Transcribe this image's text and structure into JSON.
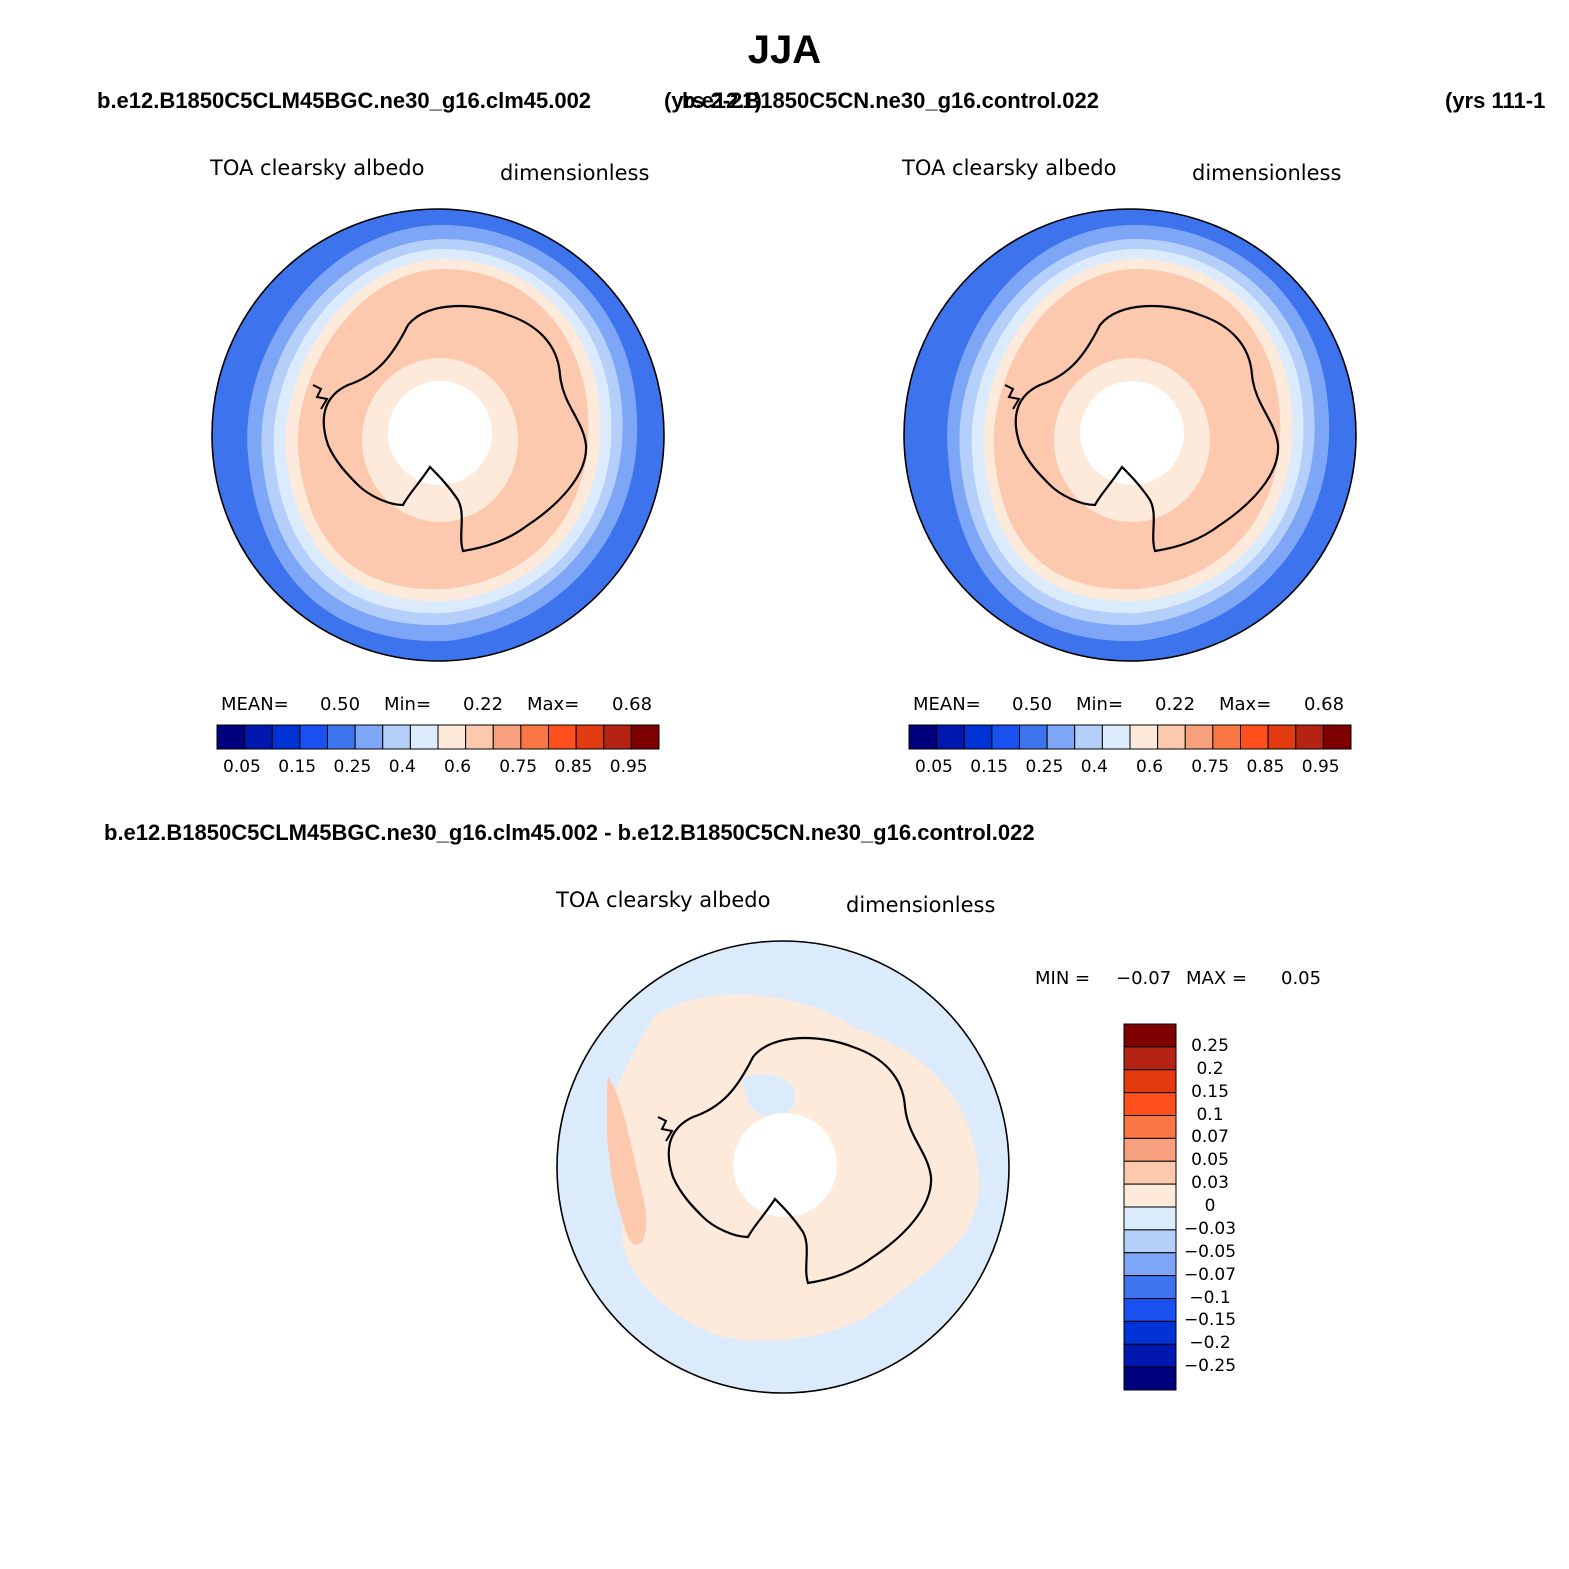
{
  "figure": {
    "season": "JJA"
  },
  "panels": [
    {
      "case": "b.e12.B1850C5CLM45BGC.ne30_g16.clm45.002",
      "years": "(yrs 2-21)",
      "variable": "TOA clearsky albedo",
      "units": "dimensionless",
      "mean_label": "MEAN=",
      "mean": "0.50",
      "min_label": "Min=",
      "min": "0.22",
      "max_label": "Max=",
      "max": "0.68"
    },
    {
      "case": "b.e12.B1850C5CN.ne30_g16.control.022",
      "years": "(yrs 111-1",
      "variable": "TOA clearsky albedo",
      "units": "dimensionless",
      "mean_label": "MEAN=",
      "mean": "0.50",
      "min_label": "Min=",
      "min": "0.22",
      "max_label": "Max=",
      "max": "0.68"
    }
  ],
  "diff": {
    "title": "b.e12.B1850C5CLM45BGC.ne30_g16.clm45.002 - b.e12.B1850C5CN.ne30_g16.control.022",
    "variable": "TOA clearsky albedo",
    "units": "dimensionless",
    "min_label": "MIN =",
    "min": "−0.07",
    "max_label": "MAX =",
    "max": "0.05"
  },
  "colorbars": {
    "abs_colors": [
      "#00007f",
      "#0017b0",
      "#0033d6",
      "#1a4ff0",
      "#3d74ee",
      "#7ea6f6",
      "#b5cffb",
      "#dcebfc",
      "#fdeadb",
      "#fcc8ae",
      "#f6a07e",
      "#f97744",
      "#ff4f1c",
      "#e33b10",
      "#b52412",
      "#7f0000"
    ],
    "abs_labels": [
      "0.05",
      "0.15",
      "0.25",
      "0.4",
      "0.6",
      "0.75",
      "0.85",
      "0.95"
    ],
    "diff_colors": [
      "#7f0000",
      "#b52412",
      "#e33b10",
      "#ff4f1c",
      "#f97744",
      "#f6a07e",
      "#fcc8ae",
      "#fdeadb",
      "#dcebfc",
      "#b5cffb",
      "#7ea6f6",
      "#3d74ee",
      "#1a4ff0",
      "#0033d6",
      "#0017b0",
      "#00007f"
    ],
    "diff_labels": [
      "0.25",
      "0.2",
      "0.15",
      "0.1",
      "0.07",
      "0.05",
      "0.03",
      "0",
      "−0.03",
      "−0.05",
      "−0.07",
      "−0.1",
      "−0.15",
      "−0.2",
      "−0.25"
    ]
  }
}
